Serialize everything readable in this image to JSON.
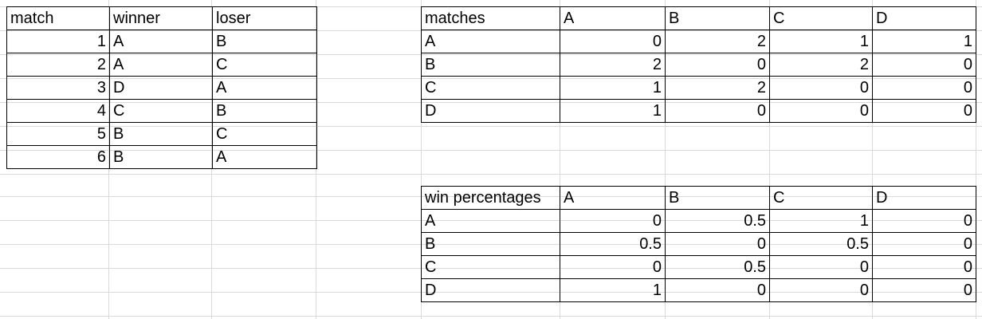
{
  "match_table": {
    "headers": [
      "match",
      "winner",
      "loser"
    ],
    "rows": [
      [
        "1",
        "A",
        "B"
      ],
      [
        "2",
        "A",
        "C"
      ],
      [
        "3",
        "D",
        "A"
      ],
      [
        "4",
        "C",
        "B"
      ],
      [
        "5",
        "B",
        "C"
      ],
      [
        "6",
        "B",
        "A"
      ]
    ]
  },
  "matches_table": {
    "headers": [
      "matches",
      "A",
      "B",
      "C",
      "D"
    ],
    "rows": [
      [
        "A",
        "0",
        "2",
        "1",
        "1"
      ],
      [
        "B",
        "2",
        "0",
        "2",
        "0"
      ],
      [
        "C",
        "1",
        "2",
        "0",
        "0"
      ],
      [
        "D",
        "1",
        "0",
        "0",
        "0"
      ]
    ]
  },
  "win_table": {
    "headers": [
      "win percentages",
      "A",
      "B",
      "C",
      "D"
    ],
    "rows": [
      [
        "A",
        "0",
        "0.5",
        "1",
        "0"
      ],
      [
        "B",
        "0.5",
        "0",
        "0.5",
        "0"
      ],
      [
        "C",
        "0",
        "0.5",
        "0",
        "0"
      ],
      [
        "D",
        "1",
        "0",
        "0",
        "0"
      ]
    ]
  }
}
